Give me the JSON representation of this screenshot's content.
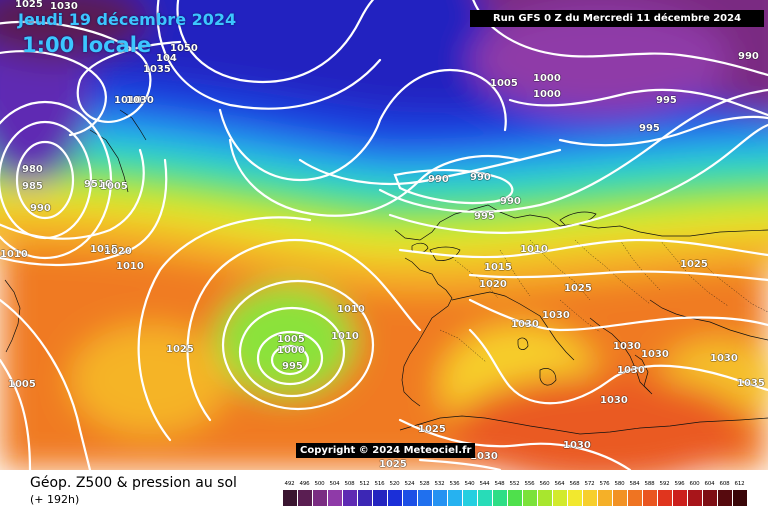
{
  "header": {
    "date": "Jeudi 19 décembre 2024",
    "local_time": "1:00 locale",
    "run_info": "Run GFS 0 Z du Mercredi 11 décembre 2024"
  },
  "copyright": "Copyright © 2024 Meteociel.fr",
  "footer": {
    "parameter": "Géop. Z500 & pression au sol",
    "lead_time": "(+ 192h)"
  },
  "legend": {
    "values": [
      "492",
      "496",
      "500",
      "504",
      "508",
      "512",
      "516",
      "520",
      "524",
      "528",
      "532",
      "536",
      "540",
      "544",
      "548",
      "552",
      "556",
      "560",
      "564",
      "568",
      "572",
      "576",
      "580",
      "584",
      "588",
      "592",
      "596",
      "600",
      "604",
      "608",
      "612"
    ],
    "colors": [
      "#3a1530",
      "#5a1e52",
      "#7a2c82",
      "#8f3aa8",
      "#5f2ab3",
      "#3c27b5",
      "#2424c0",
      "#1b2fd8",
      "#1c4fe6",
      "#2070ee",
      "#2592f2",
      "#26b2f0",
      "#25cfe0",
      "#28dcb8",
      "#2ede86",
      "#4fe04c",
      "#7be23a",
      "#a8e62e",
      "#d2ea2c",
      "#f2e82e",
      "#f7cf2c",
      "#f5b028",
      "#f29224",
      "#ef7422",
      "#ea5620",
      "#e0351e",
      "#cc1f1c",
      "#a8151a",
      "#7e0e14",
      "#560a0e",
      "#3a0608"
    ]
  },
  "map": {
    "isobar_labels": [
      {
        "t": "1025"
      },
      {
        "t": "1030"
      },
      {
        "t": "1050"
      },
      {
        "t": "104"
      },
      {
        "t": "1035"
      },
      {
        "t": "1010"
      },
      {
        "t": "1030"
      },
      {
        "t": "980"
      },
      {
        "t": "985"
      },
      {
        "t": "990"
      },
      {
        "t": "9510"
      },
      {
        "t": "1005"
      },
      {
        "t": "1010"
      },
      {
        "t": "1015"
      },
      {
        "t": "1020"
      },
      {
        "t": "1010"
      },
      {
        "t": "1025"
      },
      {
        "t": "1005"
      },
      {
        "t": "1000"
      },
      {
        "t": "1000"
      },
      {
        "t": "1005"
      },
      {
        "t": "990"
      },
      {
        "t": "995"
      },
      {
        "t": "995"
      },
      {
        "t": "990"
      },
      {
        "t": "990"
      },
      {
        "t": "990"
      },
      {
        "t": "995"
      },
      {
        "t": "1010"
      },
      {
        "t": "1015"
      },
      {
        "t": "1020"
      },
      {
        "t": "1025"
      },
      {
        "t": "1030"
      },
      {
        "t": "1030"
      },
      {
        "t": "1030"
      },
      {
        "t": "1030"
      },
      {
        "t": "1030"
      },
      {
        "t": "1030"
      },
      {
        "t": "1035"
      },
      {
        "t": "1010"
      },
      {
        "t": "1010"
      },
      {
        "t": "1005"
      },
      {
        "t": "1000"
      },
      {
        "t": "995"
      },
      {
        "t": "1025"
      },
      {
        "t": "1025"
      },
      {
        "t": "1030"
      },
      {
        "t": "1030"
      },
      {
        "t": "1025"
      },
      {
        "t": "1030"
      }
    ]
  }
}
